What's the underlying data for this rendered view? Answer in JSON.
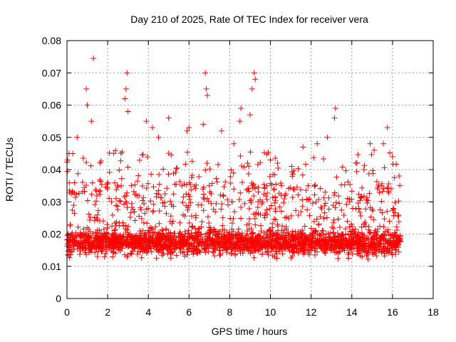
{
  "chart_data": {
    "type": "scatter",
    "title": "Day 210 of 2025, Rate Of TEC Index for receiver vera",
    "xlabel": "GPS time / hours",
    "ylabel": "ROTI / TECUs",
    "xlim": [
      0,
      18
    ],
    "ylim": [
      0,
      0.08
    ],
    "xticks": [
      "0",
      "2",
      "4",
      "6",
      "8",
      "10",
      "12",
      "14",
      "16",
      "18"
    ],
    "yticks": [
      "0",
      "0.01",
      "0.02",
      "0.03",
      "0.04",
      "0.05",
      "0.06",
      "0.07",
      "0.08"
    ],
    "grid": true,
    "marker": "+",
    "series": [
      {
        "name": "ROTI",
        "color": "#ff0000",
        "time_range_hours": [
          0,
          16.4
        ],
        "typical_range": [
          0.008,
          0.03
        ],
        "peak_points": [
          [
            1.3,
            0.0745
          ],
          [
            2.95,
            0.07
          ],
          [
            2.9,
            0.065
          ],
          [
            2.85,
            0.062
          ],
          [
            0.95,
            0.065
          ],
          [
            1.0,
            0.06
          ],
          [
            6.8,
            0.07
          ],
          [
            6.85,
            0.065
          ],
          [
            6.9,
            0.063
          ],
          [
            9.2,
            0.07
          ],
          [
            9.25,
            0.068
          ],
          [
            9.1,
            0.065
          ],
          [
            9.0,
            0.057
          ],
          [
            8.55,
            0.059
          ],
          [
            8.5,
            0.055
          ],
          [
            13.2,
            0.059
          ],
          [
            13.15,
            0.056
          ],
          [
            15.75,
            0.053
          ],
          [
            15.55,
            0.048
          ],
          [
            5.0,
            0.056
          ],
          [
            4.2,
            0.053
          ],
          [
            3.9,
            0.055
          ],
          [
            4.5,
            0.05
          ],
          [
            5.9,
            0.052
          ],
          [
            6.0,
            0.053
          ],
          [
            7.6,
            0.052
          ],
          [
            8.2,
            0.048
          ],
          [
            10.35,
            0.042
          ],
          [
            11.6,
            0.047
          ],
          [
            12.3,
            0.048
          ],
          [
            12.8,
            0.05
          ],
          [
            14.9,
            0.048
          ],
          [
            15.1,
            0.046
          ],
          [
            0.1,
            0.045
          ],
          [
            0.5,
            0.05
          ],
          [
            1.2,
            0.055
          ],
          [
            2.3,
            0.045
          ],
          [
            3.0,
            0.058
          ],
          [
            6.7,
            0.054
          ],
          [
            10.0,
            0.043
          ],
          [
            14.2,
            0.042
          ],
          [
            16.0,
            0.044
          ]
        ]
      }
    ]
  }
}
